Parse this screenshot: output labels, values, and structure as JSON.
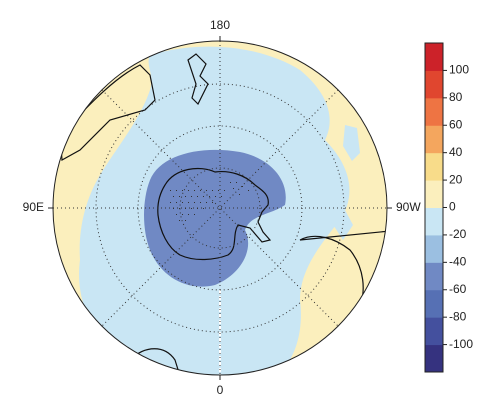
{
  "map": {
    "labels": {
      "top": "180",
      "left": "90E",
      "right": "90W",
      "bottom": "0"
    },
    "colorbar": {
      "lim": [
        -120,
        120
      ],
      "ticks": [
        -100,
        -80,
        -60,
        -40,
        -20,
        0,
        20,
        40,
        60,
        80,
        100
      ],
      "colors": [
        "#35327f",
        "#44509e",
        "#5670b4",
        "#7089c4",
        "#9bbfe1",
        "#c9e6f4",
        "#fbefbd",
        "#f8dc8a",
        "#f4a65e",
        "#ee7443",
        "#e0462f",
        "#cc2229"
      ]
    }
  }
}
